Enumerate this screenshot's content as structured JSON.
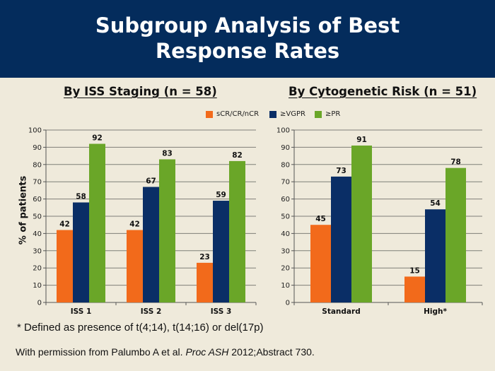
{
  "slide": {
    "title_line1": "Subgroup Analysis of Best",
    "title_line2": "Response Rates",
    "footnote": "* Defined as presence of t(4;14), t(14;16) or del(17p)",
    "citation": {
      "prefix": "With permission from Palumbo A et al. ",
      "journal": "Proc ASH",
      "suffix": " 2012;Abstract 730."
    }
  },
  "legend": [
    {
      "label": "sCR/CR/nCR",
      "color": "#f26a1b"
    },
    {
      "label": "≥VGPR",
      "color": "#0a2e66"
    },
    {
      "label": "≥PR",
      "color": "#6aa628"
    }
  ],
  "chart_data": [
    {
      "type": "bar",
      "title": "By ISS Staging (n = 58)",
      "xlabel": "",
      "ylabel": "% of patients",
      "ylim": [
        0,
        100
      ],
      "yticks": [
        0,
        10,
        20,
        30,
        40,
        50,
        60,
        70,
        80,
        90,
        100
      ],
      "grid": true,
      "legend_position": "top-center",
      "categories": [
        "ISS 1",
        "ISS 2",
        "ISS 3"
      ],
      "series": [
        {
          "name": "sCR/CR/nCR",
          "color": "#f26a1b",
          "values": [
            42,
            42,
            23
          ]
        },
        {
          "name": "≥VGPR",
          "color": "#0a2e66",
          "values": [
            58,
            67,
            59
          ]
        },
        {
          "name": "≥PR",
          "color": "#6aa628",
          "values": [
            92,
            83,
            82
          ]
        }
      ]
    },
    {
      "type": "bar",
      "title": "By Cytogenetic Risk (n = 51)",
      "xlabel": "",
      "ylabel": "",
      "ylim": [
        0,
        100
      ],
      "yticks": [
        0,
        10,
        20,
        30,
        40,
        50,
        60,
        70,
        80,
        90,
        100
      ],
      "grid": true,
      "legend_position": "top-center",
      "categories": [
        "Standard",
        "High*"
      ],
      "series": [
        {
          "name": "sCR/CR/nCR",
          "color": "#f26a1b",
          "values": [
            45,
            15
          ]
        },
        {
          "name": "≥VGPR",
          "color": "#0a2e66",
          "values": [
            73,
            54
          ]
        },
        {
          "name": "≥PR",
          "color": "#6aa628",
          "values": [
            91,
            78
          ]
        }
      ]
    }
  ]
}
